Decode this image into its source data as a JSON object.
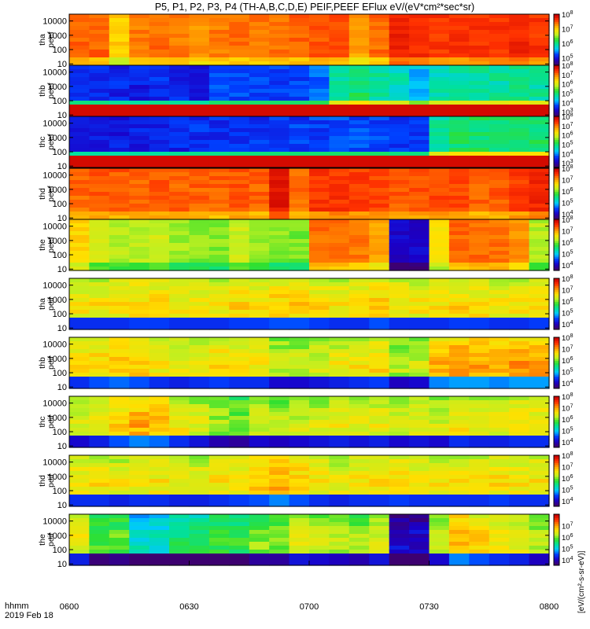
{
  "figure": {
    "title": "P5, P1, P2, P3, P4 (TH-A,B,C,D,E) PEIF,PEEF EFlux eV/(eV*cm²*sec*sr)",
    "time_label_hhmm": "hhmm",
    "time_label_date": "2019 Feb 18",
    "cbar_unit_label": "[eV/(cm²-s-sr-eV)]"
  },
  "chart_data": {
    "type": "heatmap",
    "title": "P5, P1, P2, P3, P4 (TH-A,B,C,D,E) PEIF,PEEF EFlux eV/(eV*cm²*sec*sr)",
    "x_tick_labels": [
      "0600",
      "0630",
      "0700",
      "0730",
      "0800"
    ],
    "x_range": [
      "06:00",
      "08:00"
    ],
    "y_scale": "log",
    "y_range": [
      8,
      30000
    ],
    "y_tick_labels": [
      "10",
      "100",
      "1000",
      "10000"
    ],
    "colormap": [
      "#3d0070",
      "#1a00c8",
      "#0040ff",
      "#00c8ff",
      "#00e0a0",
      "#30e030",
      "#c0f020",
      "#ffe000",
      "#ff9000",
      "#ff3000",
      "#c80000"
    ],
    "panels": [
      {
        "label": "tha\npeef",
        "cbar_max_exp": 8,
        "cbar_tick_exps": [
          5,
          6,
          7,
          8
        ],
        "band_style": "mid",
        "levels": [
          0.85,
          0.85,
          0.72,
          0.82,
          0.84,
          0.82,
          0.8,
          0.82,
          0.84,
          0.83,
          0.84,
          0.85,
          0.86,
          0.86,
          0.78,
          0.84,
          0.93,
          0.92,
          0.9,
          0.9,
          0.9,
          0.9,
          0.92,
          0.9
        ]
      },
      {
        "label": "thb\npeef",
        "cbar_max_exp": 8,
        "cbar_tick_exps": [
          3,
          4,
          5,
          6,
          7,
          8
        ],
        "band_style": "cold_low",
        "levels": [
          0.18,
          0.18,
          0.16,
          0.15,
          0.17,
          0.16,
          0.15,
          0.2,
          0.2,
          0.2,
          0.2,
          0.2,
          0.22,
          0.4,
          0.45,
          0.4,
          0.38,
          0.3,
          0.38,
          0.4,
          0.4,
          0.4,
          0.42,
          0.4
        ]
      },
      {
        "label": "thc\npeef",
        "cbar_max_exp": 8,
        "cbar_tick_exps": [
          3,
          4,
          5,
          6,
          7,
          8
        ],
        "band_style": "cold_low",
        "levels": [
          0.15,
          0.15,
          0.14,
          0.15,
          0.15,
          0.16,
          0.17,
          0.17,
          0.18,
          0.18,
          0.19,
          0.19,
          0.19,
          0.2,
          0.2,
          0.2,
          0.18,
          0.18,
          0.4,
          0.45,
          0.45,
          0.45,
          0.45,
          0.45
        ]
      },
      {
        "label": "thd\npeef",
        "cbar_max_exp": 8,
        "cbar_tick_exps": [
          4,
          5,
          6,
          7,
          8
        ],
        "band_style": "mid",
        "levels": [
          0.84,
          0.86,
          0.86,
          0.85,
          0.86,
          0.85,
          0.85,
          0.85,
          0.86,
          0.85,
          0.95,
          0.84,
          0.9,
          0.9,
          0.89,
          0.88,
          0.86,
          0.87,
          0.88,
          0.87,
          0.85,
          0.86,
          0.89,
          0.92
        ]
      },
      {
        "label": "the\npeef",
        "cbar_max_exp": 8,
        "cbar_tick_exps": [
          4,
          5,
          6,
          7,
          8
        ],
        "band_style": "mid",
        "levels": [
          0.72,
          0.62,
          0.6,
          0.6,
          0.62,
          0.58,
          0.56,
          0.56,
          0.62,
          0.58,
          0.56,
          0.55,
          0.84,
          0.84,
          0.82,
          0.78,
          0.1,
          0.1,
          0.7,
          0.84,
          0.84,
          0.84,
          0.8,
          0.6
        ]
      },
      {
        "label": "tha\npeif",
        "cbar_max_exp": 8,
        "cbar_tick_exps": [
          4,
          5,
          6,
          7,
          8
        ],
        "band_style": "ion",
        "levels": [
          0.62,
          0.62,
          0.62,
          0.64,
          0.64,
          0.62,
          0.62,
          0.62,
          0.64,
          0.64,
          0.66,
          0.66,
          0.64,
          0.62,
          0.62,
          0.66,
          0.62,
          0.62,
          0.62,
          0.64,
          0.64,
          0.62,
          0.62,
          0.64
        ]
      },
      {
        "label": "thb\npeif",
        "cbar_max_exp": 8,
        "cbar_tick_exps": [
          4,
          5,
          6,
          7,
          8
        ],
        "band_style": "ion",
        "levels": [
          0.62,
          0.66,
          0.68,
          0.66,
          0.62,
          0.6,
          0.62,
          0.64,
          0.62,
          0.62,
          0.56,
          0.56,
          0.58,
          0.6,
          0.62,
          0.64,
          0.54,
          0.56,
          0.7,
          0.72,
          0.72,
          0.7,
          0.72,
          0.72
        ]
      },
      {
        "label": "thc\npeif",
        "cbar_max_exp": 8,
        "cbar_tick_exps": [
          4,
          5,
          6,
          7,
          8
        ],
        "band_style": "ion",
        "levels": [
          0.56,
          0.6,
          0.66,
          0.7,
          0.68,
          0.62,
          0.58,
          0.52,
          0.5,
          0.56,
          0.54,
          0.56,
          0.58,
          0.6,
          0.58,
          0.6,
          0.56,
          0.58,
          0.56,
          0.62,
          0.6,
          0.6,
          0.62,
          0.62
        ]
      },
      {
        "label": "thd\npeif",
        "cbar_max_exp": 8,
        "cbar_tick_exps": [
          4,
          5,
          6,
          7,
          8
        ],
        "band_style": "ion",
        "levels": [
          0.62,
          0.62,
          0.6,
          0.62,
          0.62,
          0.6,
          0.6,
          0.62,
          0.64,
          0.66,
          0.7,
          0.66,
          0.62,
          0.6,
          0.62,
          0.62,
          0.64,
          0.62,
          0.62,
          0.62,
          0.62,
          0.64,
          0.62,
          0.62
        ]
      },
      {
        "label": "the\npeif",
        "cbar_max_exp": 8,
        "cbar_tick_exps": [
          4,
          5,
          6,
          7
        ],
        "band_style": "ion",
        "levels": [
          0.6,
          0.46,
          0.48,
          0.3,
          0.3,
          0.4,
          0.4,
          0.44,
          0.44,
          0.5,
          0.5,
          0.58,
          0.56,
          0.54,
          0.52,
          0.58,
          0.05,
          0.05,
          0.56,
          0.7,
          0.66,
          0.62,
          0.6,
          0.54
        ]
      }
    ]
  }
}
